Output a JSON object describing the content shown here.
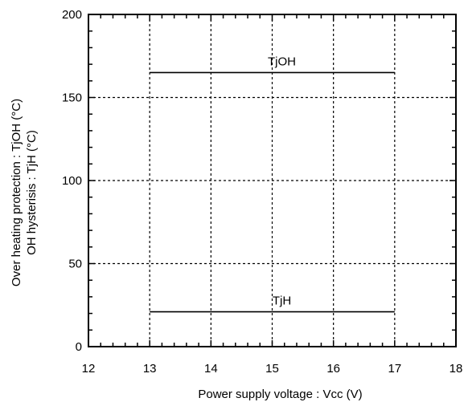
{
  "chart_data": {
    "type": "line",
    "title": "",
    "xlabel": "Power supply voltage : Vcc (V)",
    "ylabel_lines": [
      "Over heating protection : TjOH (°C)",
      "OH hysterisis : TjH (°C)"
    ],
    "xlim": [
      12,
      18
    ],
    "ylim": [
      0,
      200
    ],
    "x_ticks": [
      12,
      13,
      14,
      15,
      16,
      17,
      18
    ],
    "y_ticks": [
      0,
      50,
      100,
      150,
      200
    ],
    "x_tick_labels": [
      "12",
      "13",
      "14",
      "15",
      "16",
      "17",
      "18"
    ],
    "y_tick_labels": [
      "0",
      "50",
      "100",
      "150",
      "200"
    ],
    "grid": true,
    "legend": "none",
    "series": [
      {
        "name": "TjOH",
        "x": [
          13,
          17
        ],
        "y": [
          165,
          165
        ]
      },
      {
        "name": "TjH",
        "x": [
          13,
          17
        ],
        "y": [
          21,
          21
        ]
      }
    ],
    "colors": {
      "line": "#000000",
      "grid": "#000000",
      "background": "#ffffff"
    }
  }
}
